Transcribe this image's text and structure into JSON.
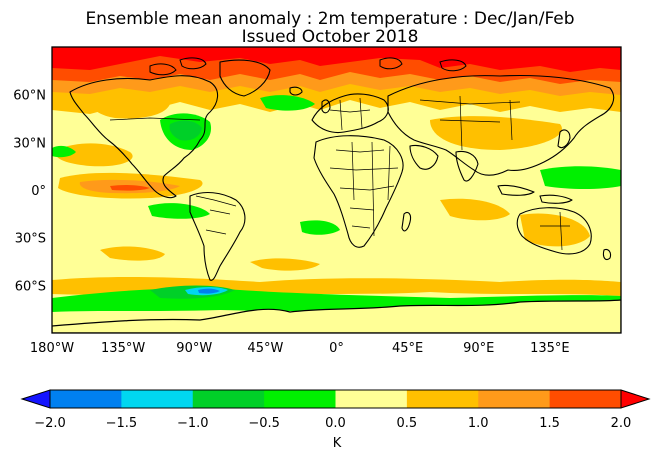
{
  "title": {
    "line1": "Ensemble mean anomaly : 2m temperature : Dec/Jan/Feb",
    "line2": "Issued October 2018"
  },
  "map": {
    "projection": "equirectangular",
    "background_anomaly_class": "0.0 to 0.5",
    "lat_tick_labels": [
      "60°N",
      "30°N",
      "0°",
      "30°S",
      "60°S"
    ],
    "lon_tick_labels": [
      "180°W",
      "135°W",
      "90°W",
      "45°W",
      "0°",
      "45°E",
      "90°E",
      "135°E"
    ]
  },
  "colorbar": {
    "unit": "K",
    "tick_labels": [
      "−2.0",
      "−1.5",
      "−1.0",
      "−0.5",
      "0.0",
      "0.5",
      "1.0",
      "1.5",
      "2.0"
    ],
    "colors": [
      "#0a2be0",
      "#0080f0",
      "#00d7f0",
      "#00d028",
      "#00f000",
      "#ffff96",
      "#ffc000",
      "#ff9a1a",
      "#ff4d00",
      "#ff0000"
    ],
    "under_color": "#1414ff",
    "over_color": "#ff0000"
  },
  "colors": {
    "coastline": "#000000",
    "frame": "#000000"
  }
}
